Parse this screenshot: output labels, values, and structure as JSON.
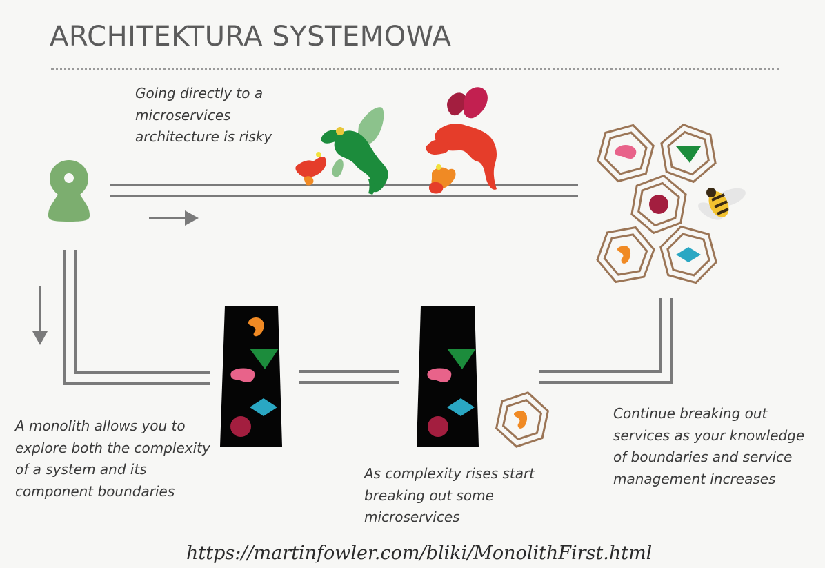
{
  "title": "ARCHITEKTURA SYSTEMOWA",
  "captions": {
    "risky": [
      "Going directly to a",
      "microservices",
      "architecture is risky"
    ],
    "monolith": [
      "A monolith allows you to",
      "explore both the complexity",
      "of a system and its",
      "component boundaries"
    ],
    "complexity": [
      "As complexity rises start",
      "breaking out some",
      "microservices"
    ],
    "continue": [
      "Continue breaking out",
      "services as your knowledge",
      "of boundaries and service",
      "management increases"
    ]
  },
  "url": "https://martinfowler.com/bliki/MonolithFirst.html",
  "icons": [
    "player-pawn-icon",
    "dragon-icon",
    "right-arrow-icon",
    "down-arrow-icon",
    "monolith-block-icon",
    "service-hexagon-icon",
    "bee-icon"
  ],
  "colors": {
    "track": "#7a7a7a",
    "pawn": "#7cae6f",
    "pink": "#e8638a",
    "green": "#1c8c3c",
    "teal": "#2aa7c3",
    "maroon": "#a31e3f",
    "orange": "#f08a24",
    "hex": "#9b7556"
  }
}
